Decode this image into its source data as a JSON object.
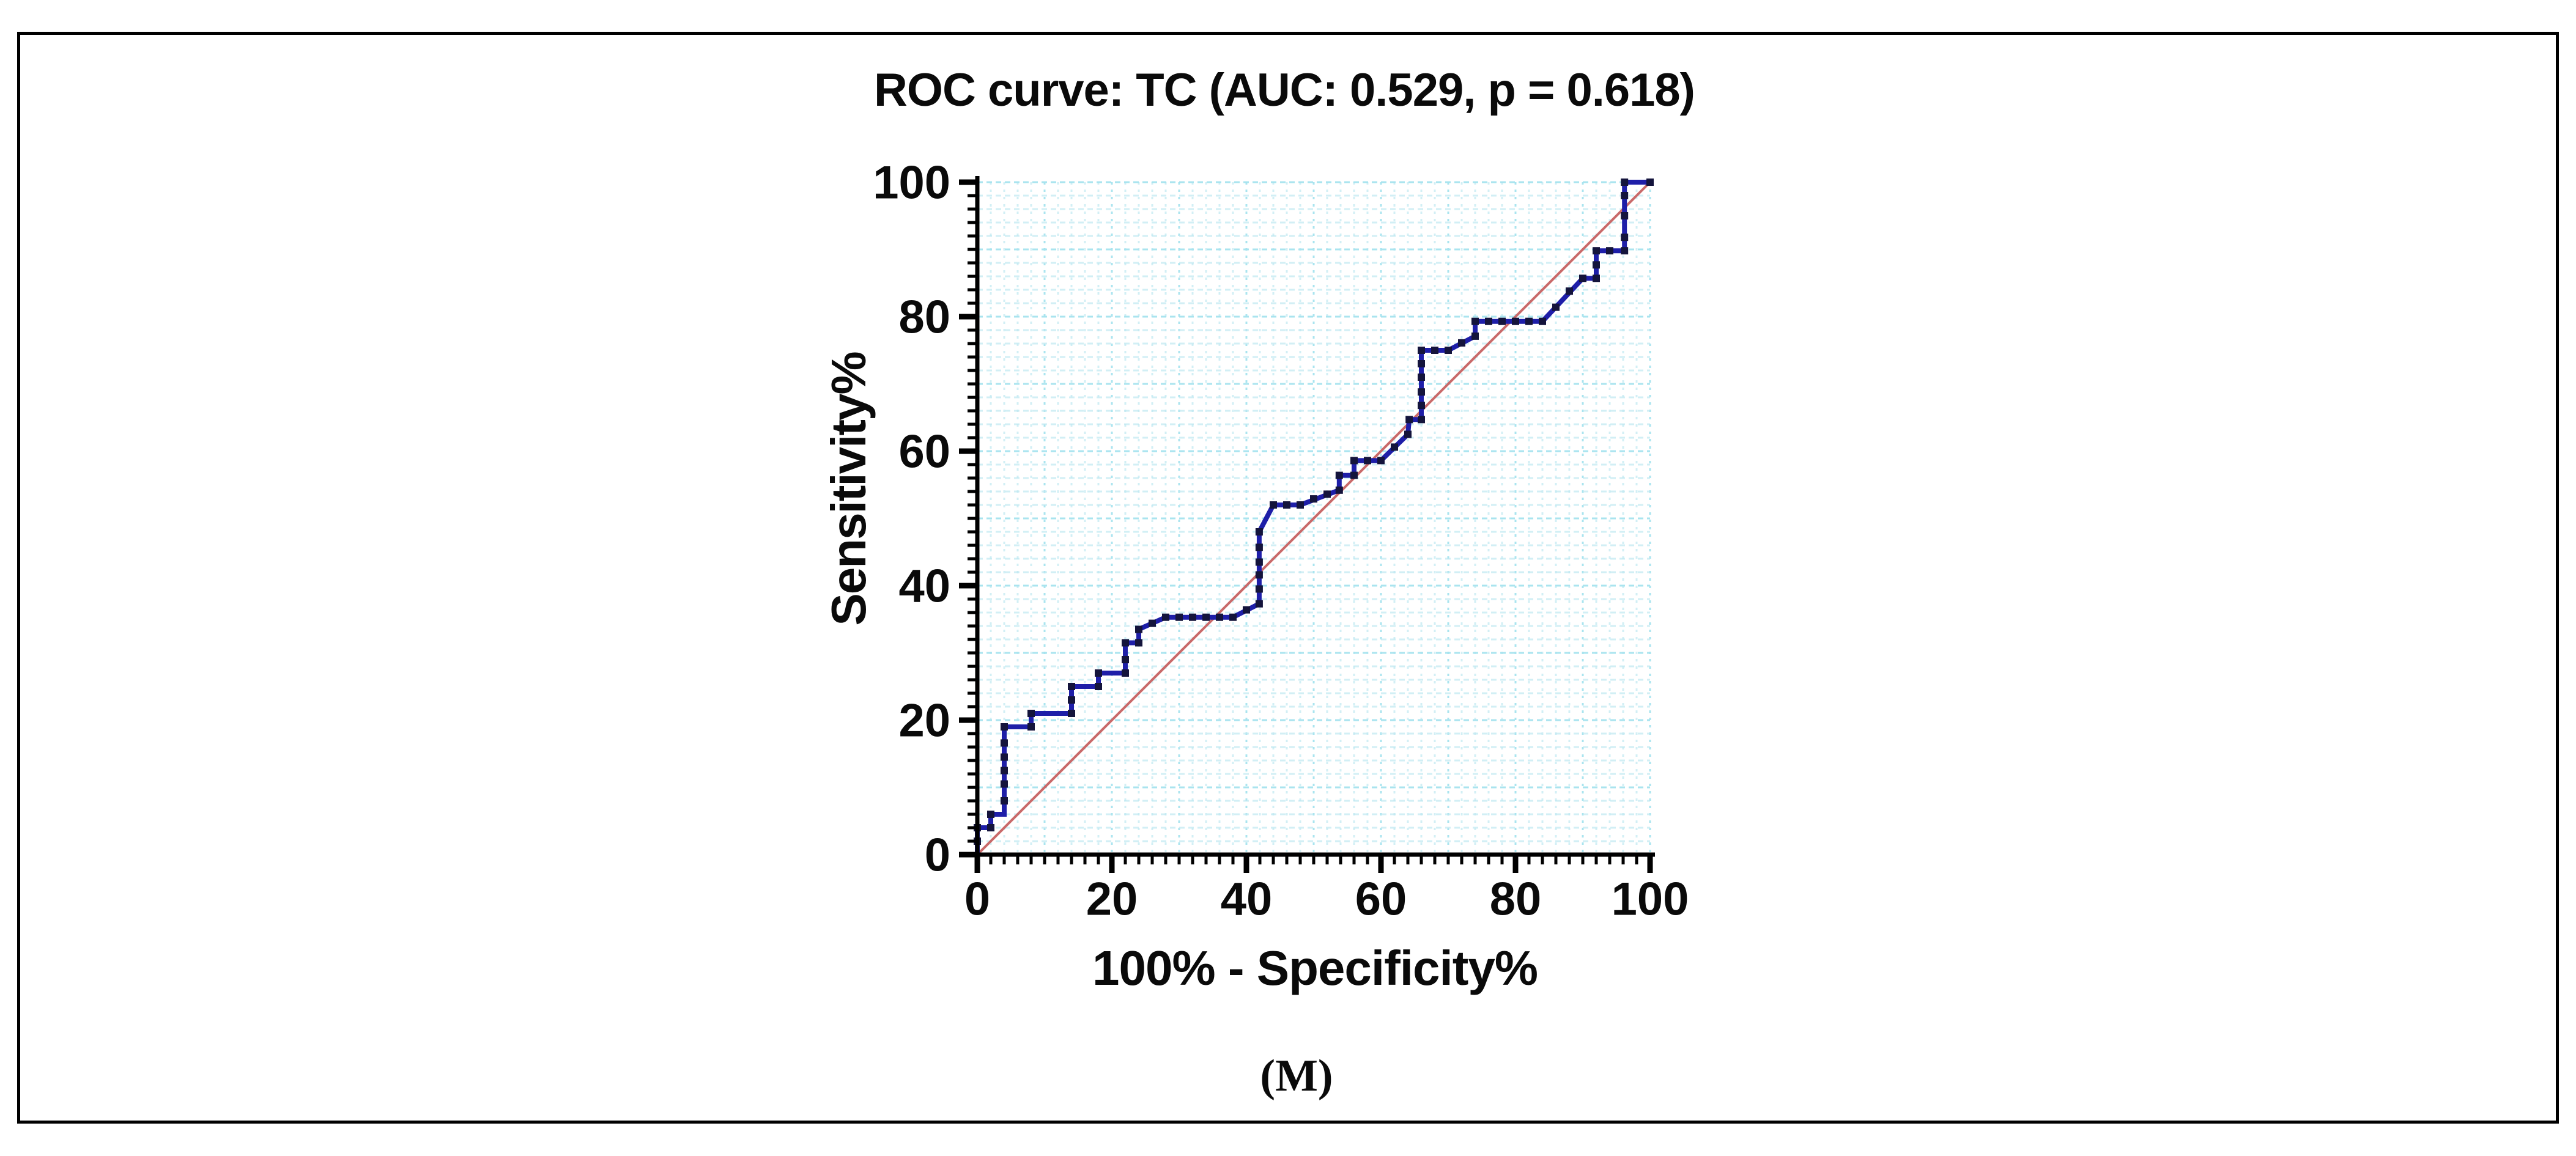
{
  "chart_data": {
    "type": "line",
    "title": "ROC curve: TC (AUC: 0.529, p = 0.618)",
    "xlabel": "100% - Specificity%",
    "ylabel": "Sensitivity%",
    "caption": "(M)",
    "stats": {
      "variable": "TC",
      "auc": 0.529,
      "p_value": 0.618
    },
    "xlim": [
      0,
      100
    ],
    "ylim": [
      0,
      100
    ],
    "x_tick_labels": [
      "0",
      "20",
      "40",
      "60",
      "80",
      "100"
    ],
    "y_tick_labels": [
      "0",
      "20",
      "40",
      "60",
      "80",
      "100"
    ],
    "major_tick_step": 20,
    "minor_tick_step": 2,
    "grid": true,
    "legend_position": "none",
    "grid_color": "#bfe9f2",
    "grid_major_color": "#a6e3ef",
    "axis_color": "#000000",
    "series": [
      {
        "name": "ROC curve (TC)",
        "style": "step",
        "color": "#1e1ea8",
        "line_width": 8,
        "marker": "square",
        "marker_color": "#14143c",
        "points": [
          [
            0,
            0
          ],
          [
            0,
            4
          ],
          [
            2,
            4
          ],
          [
            2,
            6
          ],
          [
            4,
            6
          ],
          [
            4,
            19
          ],
          [
            8,
            19
          ],
          [
            8,
            21
          ],
          [
            14,
            21
          ],
          [
            14,
            25
          ],
          [
            18,
            25
          ],
          [
            18,
            27
          ],
          [
            22,
            27
          ],
          [
            22,
            31.5
          ],
          [
            24,
            31.5
          ],
          [
            24,
            33.5
          ],
          [
            28,
            35.3
          ],
          [
            38,
            35.3
          ],
          [
            41.9,
            37.3
          ],
          [
            41.9,
            48
          ],
          [
            44,
            52
          ],
          [
            48,
            52
          ],
          [
            53.8,
            54.2
          ],
          [
            53.8,
            56.4
          ],
          [
            56,
            56.4
          ],
          [
            56,
            58.6
          ],
          [
            60,
            58.6
          ],
          [
            64,
            62.5
          ],
          [
            64.2,
            64.7
          ],
          [
            66,
            64.7
          ],
          [
            66,
            75
          ],
          [
            70,
            75
          ],
          [
            74,
            77.1
          ],
          [
            74,
            79.3
          ],
          [
            84,
            79.3
          ],
          [
            90,
            85.7
          ],
          [
            92,
            85.7
          ],
          [
            92,
            89.8
          ],
          [
            96.2,
            89.8
          ],
          [
            96.2,
            100
          ],
          [
            100,
            100
          ]
        ],
        "markers": [
          [
            0,
            2
          ],
          [
            0,
            4
          ],
          [
            2,
            4
          ],
          [
            2,
            6
          ],
          [
            4,
            8
          ],
          [
            4,
            10.5
          ],
          [
            4,
            12.5
          ],
          [
            4,
            14.5
          ],
          [
            4,
            16.6
          ],
          [
            4,
            19
          ],
          [
            8,
            19
          ],
          [
            8,
            21
          ],
          [
            14,
            21
          ],
          [
            14,
            23
          ],
          [
            14,
            25
          ],
          [
            18,
            25
          ],
          [
            18,
            27
          ],
          [
            22,
            27
          ],
          [
            22,
            29
          ],
          [
            22,
            31.5
          ],
          [
            24,
            31.5
          ],
          [
            24,
            33.5
          ],
          [
            26,
            34.4
          ],
          [
            28,
            35.3
          ],
          [
            30,
            35.3
          ],
          [
            32,
            35.3
          ],
          [
            34,
            35.3
          ],
          [
            36,
            35.3
          ],
          [
            38,
            35.3
          ],
          [
            40,
            36.4
          ],
          [
            41.9,
            37.3
          ],
          [
            41.9,
            39.5
          ],
          [
            41.9,
            41.6
          ],
          [
            41.9,
            43.5
          ],
          [
            41.9,
            45.7
          ],
          [
            41.9,
            48
          ],
          [
            44,
            52
          ],
          [
            46,
            52
          ],
          [
            48,
            52
          ],
          [
            50,
            52.9
          ],
          [
            52,
            53.6
          ],
          [
            53.8,
            54.2
          ],
          [
            53.8,
            56.4
          ],
          [
            56,
            56.4
          ],
          [
            56,
            58.6
          ],
          [
            58,
            58.6
          ],
          [
            60,
            58.6
          ],
          [
            62,
            60.6
          ],
          [
            64,
            62.5
          ],
          [
            64.2,
            64.7
          ],
          [
            66,
            64.7
          ],
          [
            66,
            66.8
          ],
          [
            66,
            68.8
          ],
          [
            66,
            71
          ],
          [
            66,
            73
          ],
          [
            66,
            75
          ],
          [
            68,
            75
          ],
          [
            70,
            75
          ],
          [
            72,
            76.1
          ],
          [
            74,
            77.1
          ],
          [
            74,
            79.3
          ],
          [
            76,
            79.3
          ],
          [
            78,
            79.3
          ],
          [
            80,
            79.3
          ],
          [
            82,
            79.3
          ],
          [
            84,
            79.3
          ],
          [
            86,
            81.4
          ],
          [
            88,
            83.8
          ],
          [
            90,
            85.7
          ],
          [
            92,
            85.7
          ],
          [
            92,
            87.7
          ],
          [
            92,
            89.8
          ],
          [
            94,
            89.8
          ],
          [
            96.2,
            89.8
          ],
          [
            96.2,
            91.8
          ],
          [
            96.2,
            95
          ],
          [
            96.2,
            98
          ],
          [
            96.2,
            100
          ],
          [
            100,
            100
          ]
        ]
      },
      {
        "name": "Reference diagonal",
        "style": "straight",
        "color": "#c96a6a",
        "line_width": 4,
        "marker": "none",
        "points": [
          [
            0,
            0
          ],
          [
            100,
            100
          ]
        ]
      }
    ]
  }
}
